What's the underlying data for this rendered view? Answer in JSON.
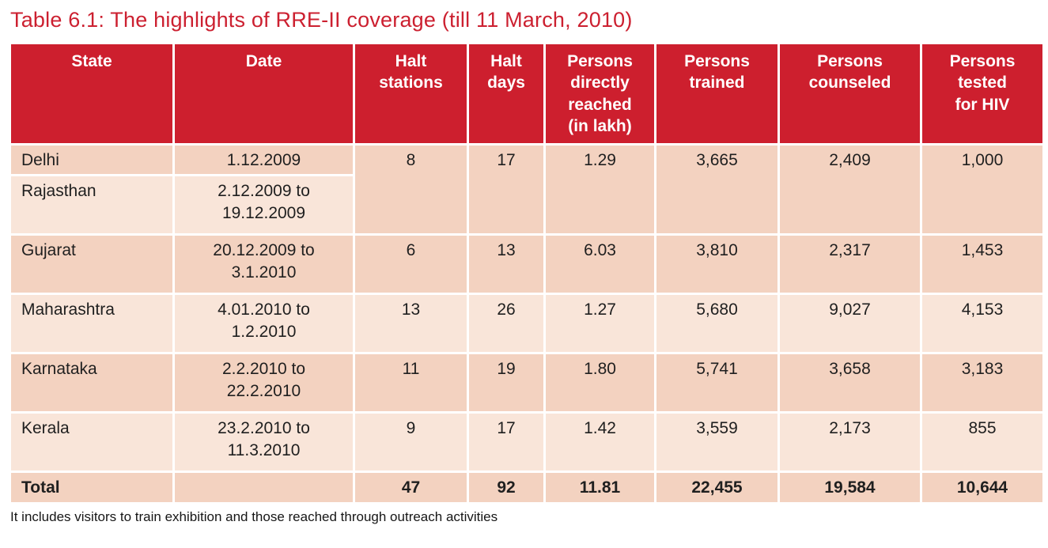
{
  "page": {
    "title": "Table 6.1: The highlights of RRE-II coverage (till 11 March, 2010)",
    "footnote": "It includes visitors to train exhibition and those reached through outreach activities"
  },
  "colors": {
    "accent_red": "#cd1f2e",
    "title_red": "#cc2030",
    "row_dark_peach": "#f3d2c0",
    "row_light_peach": "#f9e5d9",
    "header_text": "#ffffff",
    "body_text": "#1f1f1f"
  },
  "table": {
    "headers": {
      "state": "State",
      "date": "Date",
      "halt_stations": "Halt\nstations",
      "halt_days": "Halt\ndays",
      "persons_reached": "Persons\ndirectly\nreached\n(in lakh)",
      "persons_trained": "Persons\ntrained",
      "persons_counseled": "Persons\ncounseled",
      "persons_tested": "Persons\ntested\nfor HIV"
    },
    "rows": [
      {
        "state": "Delhi",
        "date": "1.12.2009",
        "halt_stations": "8",
        "halt_days": "17",
        "persons_reached": "1.29",
        "persons_trained": "3,665",
        "persons_counseled": "2,409",
        "persons_tested": "1,000"
      },
      {
        "state": "Rajasthan",
        "date": "2.12.2009 to\n19.12.2009"
      },
      {
        "state": "Gujarat",
        "date": "20.12.2009 to\n3.1.2010",
        "halt_stations": "6",
        "halt_days": "13",
        "persons_reached": "6.03",
        "persons_trained": "3,810",
        "persons_counseled": "2,317",
        "persons_tested": "1,453"
      },
      {
        "state": "Maharashtra",
        "date": "4.01.2010 to\n1.2.2010",
        "halt_stations": "13",
        "halt_days": "26",
        "persons_reached": "1.27",
        "persons_trained": "5,680",
        "persons_counseled": "9,027",
        "persons_tested": "4,153"
      },
      {
        "state": "Karnataka",
        "date": "2.2.2010 to\n22.2.2010",
        "halt_stations": "11",
        "halt_days": "19",
        "persons_reached": "1.80",
        "persons_trained": "5,741",
        "persons_counseled": "3,658",
        "persons_tested": "3,183"
      },
      {
        "state": "Kerala",
        "date": "23.2.2010 to\n11.3.2010",
        "halt_stations": "9",
        "halt_days": "17",
        "persons_reached": "1.42",
        "persons_trained": "3,559",
        "persons_counseled": "2,173",
        "persons_tested": "855"
      }
    ],
    "total": {
      "label": "Total",
      "halt_stations": "47",
      "halt_days": "92",
      "persons_reached": "11.81",
      "persons_trained": "22,455",
      "persons_counseled": "19,584",
      "persons_tested": "10,644"
    }
  }
}
